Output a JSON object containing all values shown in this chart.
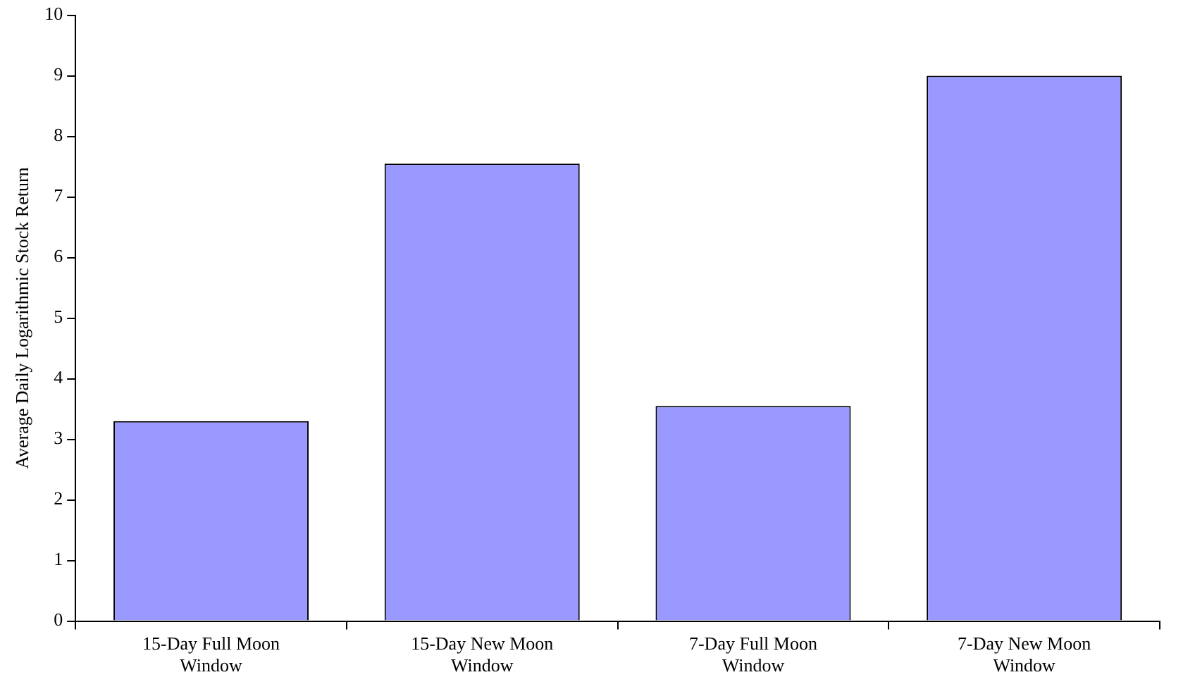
{
  "chart_data": {
    "type": "bar",
    "ylabel": "Average Daily Logarithmic Stock Return",
    "categories": [
      "15-Day Full Moon Window",
      "15-Day New Moon Window",
      "7-Day Full Moon Window",
      "7-Day New Moon Window"
    ],
    "values": [
      3.3,
      7.55,
      3.55,
      9.0
    ],
    "color": "#9999ff",
    "ylim": [
      0,
      10
    ],
    "yticks": [
      0,
      1,
      2,
      3,
      4,
      5,
      6,
      7,
      8,
      9,
      10
    ],
    "grid": false,
    "legend": false
  }
}
